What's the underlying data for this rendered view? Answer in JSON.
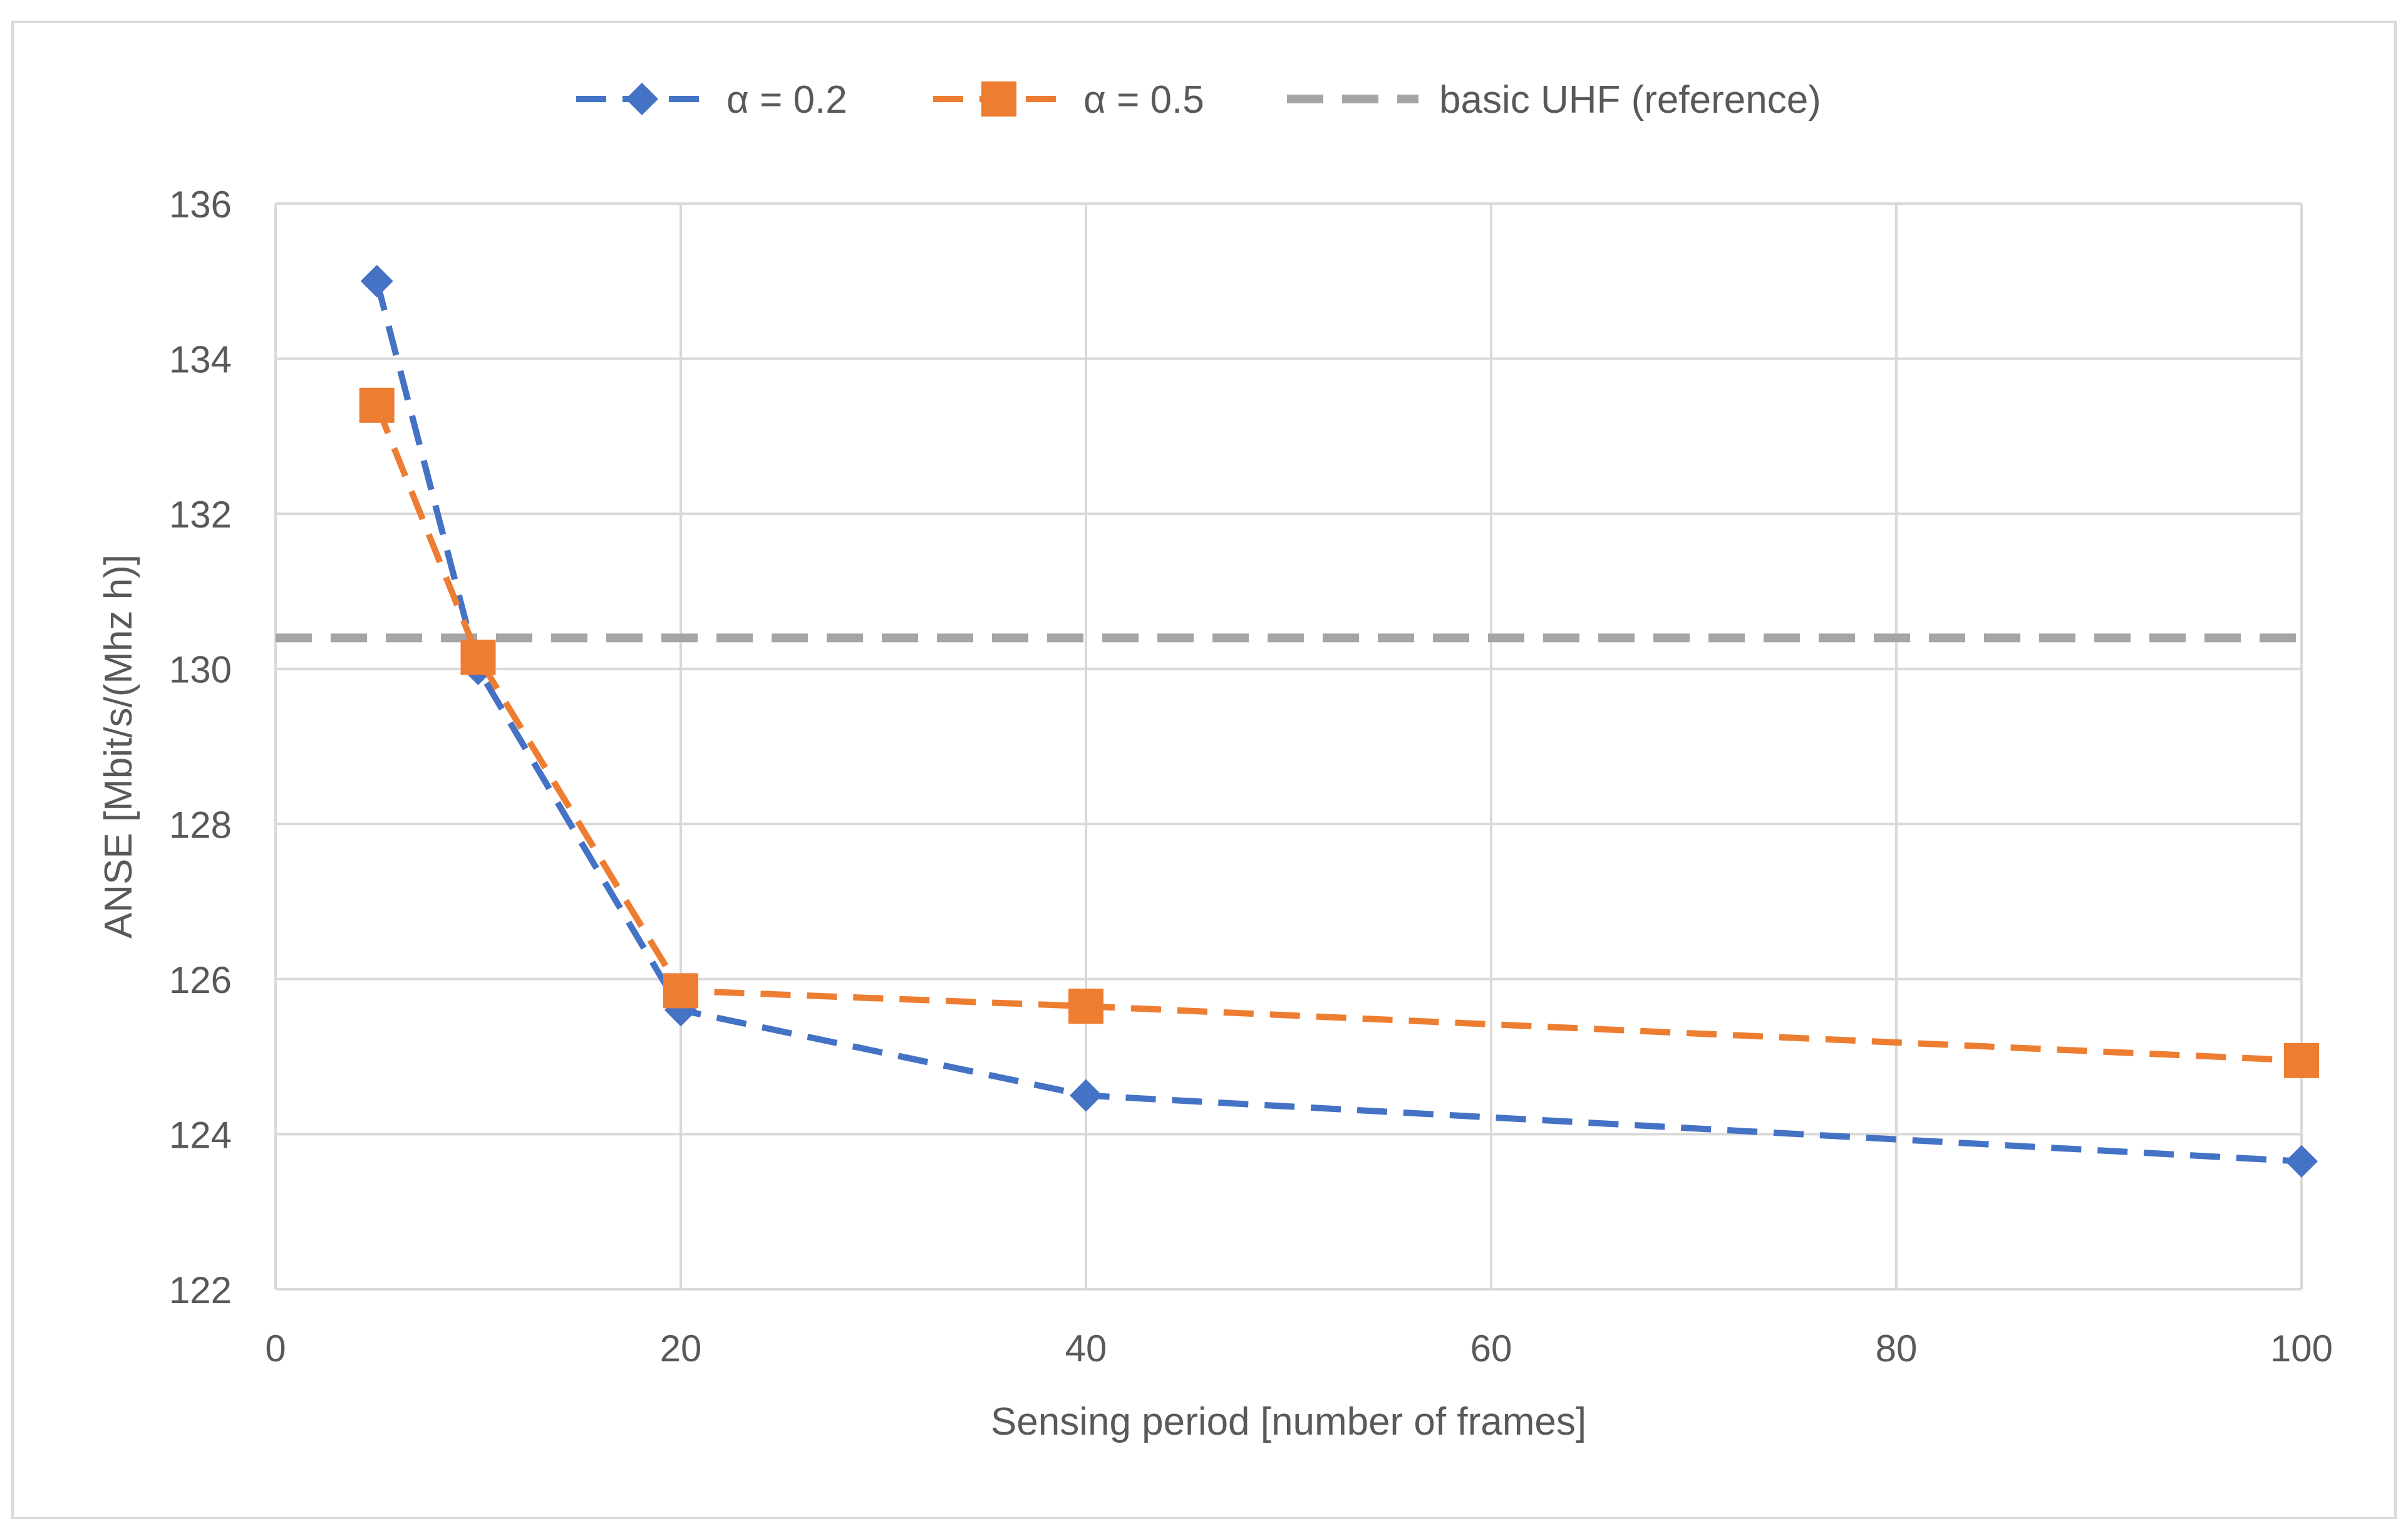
{
  "chart_data": {
    "type": "line",
    "title": "",
    "xlabel": "Sensing period [number of frames]",
    "ylabel": "ANSE [Mbit/s/(Mhz h)]",
    "xlim": [
      0,
      100
    ],
    "ylim": [
      122,
      136
    ],
    "xticks": [
      0,
      20,
      40,
      60,
      80,
      100
    ],
    "yticks": [
      122,
      124,
      126,
      128,
      130,
      132,
      134,
      136
    ],
    "grid": true,
    "legend_position": "top",
    "series": [
      {
        "name": "α = 0.2",
        "color": "#4472C4",
        "marker": "diamond",
        "line": "dashed",
        "x": [
          5,
          10,
          20,
          40,
          100
        ],
        "values": [
          135.0,
          130.0,
          125.6,
          124.5,
          123.65
        ]
      },
      {
        "name": "α = 0.5",
        "color": "#ED7D31",
        "marker": "square",
        "line": "dashed",
        "x": [
          5,
          10,
          20,
          40,
          100
        ],
        "values": [
          133.4,
          130.15,
          125.85,
          125.65,
          124.95
        ]
      },
      {
        "name": "basic UHF (reference)",
        "color": "#A5A5A5",
        "marker": "none",
        "line": "dashed",
        "x": [
          0,
          100
        ],
        "values": [
          130.4,
          130.4
        ]
      }
    ]
  }
}
